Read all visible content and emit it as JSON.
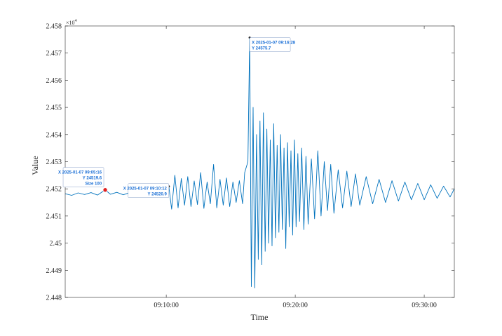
{
  "chart_data": {
    "type": "line",
    "title": "",
    "xlabel": "Time",
    "ylabel": "Value",
    "y_exponent_label": "×10",
    "y_exponent_power": "4",
    "ylim": [
      24480,
      24580
    ],
    "xlim": [
      "2025-01-07 09:02:10",
      "2025-01-07 09:32:20"
    ],
    "grid": false,
    "x_ticks": [
      {
        "t": "2025-01-07 09:10:00",
        "label": "09:10:00"
      },
      {
        "t": "2025-01-07 09:20:00",
        "label": "09:20:00"
      },
      {
        "t": "2025-01-07 09:30:00",
        "label": "09:30:00"
      }
    ],
    "y_ticks": [
      {
        "v": 24480,
        "label": "2.448"
      },
      {
        "v": 24490,
        "label": "2.449"
      },
      {
        "v": 24500,
        "label": "2.45"
      },
      {
        "v": 24510,
        "label": "2.451"
      },
      {
        "v": 24520,
        "label": "2.452"
      },
      {
        "v": 24530,
        "label": "2.453"
      },
      {
        "v": 24540,
        "label": "2.454"
      },
      {
        "v": 24550,
        "label": "2.455"
      },
      {
        "v": 24560,
        "label": "2.456"
      },
      {
        "v": 24570,
        "label": "2.457"
      },
      {
        "v": 24580,
        "label": "2.458"
      }
    ],
    "series": [
      {
        "color": "#0072BD",
        "points": [
          [
            "2025-01-07 09:02:10",
            24518.2
          ],
          [
            "2025-01-07 09:02:40",
            24517.6
          ],
          [
            "2025-01-07 09:03:10",
            24518.5
          ],
          [
            "2025-01-07 09:03:40",
            24517.9
          ],
          [
            "2025-01-07 09:04:10",
            24518.6
          ],
          [
            "2025-01-07 09:04:40",
            24517.7
          ],
          [
            "2025-01-07 09:05:16",
            24519.6
          ],
          [
            "2025-01-07 09:05:40",
            24518.0
          ],
          [
            "2025-01-07 09:06:10",
            24518.7
          ],
          [
            "2025-01-07 09:06:40",
            24517.8
          ],
          [
            "2025-01-07 09:07:10",
            24518.6
          ],
          [
            "2025-01-07 09:07:40",
            24518.0
          ],
          [
            "2025-01-07 09:08:10",
            24518.8
          ],
          [
            "2025-01-07 09:08:40",
            24517.6
          ],
          [
            "2025-01-07 09:09:10",
            24518.9
          ],
          [
            "2025-01-07 09:09:40",
            24518.1
          ],
          [
            "2025-01-07 09:10:12",
            24520.9
          ],
          [
            "2025-01-07 09:10:25",
            24512.5
          ],
          [
            "2025-01-07 09:10:40",
            24525.0
          ],
          [
            "2025-01-07 09:10:55",
            24513.0
          ],
          [
            "2025-01-07 09:11:10",
            24523.8
          ],
          [
            "2025-01-07 09:11:25",
            24514.0
          ],
          [
            "2025-01-07 09:11:40",
            24524.5
          ],
          [
            "2025-01-07 09:11:55",
            24513.5
          ],
          [
            "2025-01-07 09:12:10",
            24522.9
          ],
          [
            "2025-01-07 09:12:25",
            24514.2
          ],
          [
            "2025-01-07 09:12:40",
            24526.0
          ],
          [
            "2025-01-07 09:12:55",
            24512.8
          ],
          [
            "2025-01-07 09:13:10",
            24522.5
          ],
          [
            "2025-01-07 09:13:25",
            24514.5
          ],
          [
            "2025-01-07 09:13:40",
            24529.0
          ],
          [
            "2025-01-07 09:13:55",
            24513.0
          ],
          [
            "2025-01-07 09:14:10",
            24523.5
          ],
          [
            "2025-01-07 09:14:25",
            24514.0
          ],
          [
            "2025-01-07 09:14:40",
            24524.0
          ],
          [
            "2025-01-07 09:14:55",
            24513.5
          ],
          [
            "2025-01-07 09:15:10",
            24522.5
          ],
          [
            "2025-01-07 09:15:25",
            24515.0
          ],
          [
            "2025-01-07 09:15:40",
            24523.0
          ],
          [
            "2025-01-07 09:15:55",
            24514.5
          ],
          [
            "2025-01-07 09:16:05",
            24526.0
          ],
          [
            "2025-01-07 09:16:20",
            24530.0
          ],
          [
            "2025-01-07 09:16:28",
            24575.7
          ],
          [
            "2025-01-07 09:16:36",
            24484.0
          ],
          [
            "2025-01-07 09:16:44",
            24550.0
          ],
          [
            "2025-01-07 09:16:52",
            24483.5
          ],
          [
            "2025-01-07 09:17:00",
            24540.0
          ],
          [
            "2025-01-07 09:17:08",
            24494.0
          ],
          [
            "2025-01-07 09:17:16",
            24545.0
          ],
          [
            "2025-01-07 09:17:24",
            24492.0
          ],
          [
            "2025-01-07 09:17:32",
            24548.0
          ],
          [
            "2025-01-07 09:17:40",
            24497.0
          ],
          [
            "2025-01-07 09:17:48",
            24542.0
          ],
          [
            "2025-01-07 09:17:56",
            24500.0
          ],
          [
            "2025-01-07 09:18:04",
            24538.0
          ],
          [
            "2025-01-07 09:18:12",
            24499.0
          ],
          [
            "2025-01-07 09:18:20",
            24544.0
          ],
          [
            "2025-01-07 09:18:28",
            24502.0
          ],
          [
            "2025-01-07 09:18:36",
            24536.0
          ],
          [
            "2025-01-07 09:18:44",
            24504.0
          ],
          [
            "2025-01-07 09:18:52",
            24540.0
          ],
          [
            "2025-01-07 09:19:00",
            24505.0
          ],
          [
            "2025-01-07 09:19:08",
            24535.0
          ],
          [
            "2025-01-07 09:19:16",
            24498.0
          ],
          [
            "2025-01-07 09:19:24",
            24537.0
          ],
          [
            "2025-01-07 09:19:32",
            24506.0
          ],
          [
            "2025-01-07 09:19:40",
            24534.0
          ],
          [
            "2025-01-07 09:19:48",
            24503.0
          ],
          [
            "2025-01-07 09:19:56",
            24538.0
          ],
          [
            "2025-01-07 09:20:04",
            24506.0
          ],
          [
            "2025-01-07 09:20:12",
            24533.0
          ],
          [
            "2025-01-07 09:20:20",
            24508.0
          ],
          [
            "2025-01-07 09:20:30",
            24535.0
          ],
          [
            "2025-01-07 09:20:40",
            24505.0
          ],
          [
            "2025-01-07 09:20:50",
            24532.0
          ],
          [
            "2025-01-07 09:21:00",
            24507.0
          ],
          [
            "2025-01-07 09:21:15",
            24531.0
          ],
          [
            "2025-01-07 09:21:30",
            24509.0
          ],
          [
            "2025-01-07 09:21:45",
            24534.0
          ],
          [
            "2025-01-07 09:22:00",
            24510.0
          ],
          [
            "2025-01-07 09:22:15",
            24530.0
          ],
          [
            "2025-01-07 09:22:30",
            24512.0
          ],
          [
            "2025-01-07 09:22:45",
            24529.0
          ],
          [
            "2025-01-07 09:23:00",
            24511.0
          ],
          [
            "2025-01-07 09:23:20",
            24527.0
          ],
          [
            "2025-01-07 09:23:40",
            24513.0
          ],
          [
            "2025-01-07 09:24:00",
            24526.5
          ],
          [
            "2025-01-07 09:24:20",
            24513.5
          ],
          [
            "2025-01-07 09:24:40",
            24525.5
          ],
          [
            "2025-01-07 09:25:00",
            24514.0
          ],
          [
            "2025-01-07 09:25:30",
            24524.5
          ],
          [
            "2025-01-07 09:26:00",
            24514.5
          ],
          [
            "2025-01-07 09:26:30",
            24523.5
          ],
          [
            "2025-01-07 09:27:00",
            24515.0
          ],
          [
            "2025-01-07 09:27:30",
            24523.0
          ],
          [
            "2025-01-07 09:28:00",
            24515.5
          ],
          [
            "2025-01-07 09:28:30",
            24522.5
          ],
          [
            "2025-01-07 09:29:00",
            24516.0
          ],
          [
            "2025-01-07 09:29:30",
            24522.0
          ],
          [
            "2025-01-07 09:30:00",
            24516.0
          ],
          [
            "2025-01-07 09:30:30",
            24521.5
          ],
          [
            "2025-01-07 09:31:00",
            24516.5
          ],
          [
            "2025-01-07 09:31:30",
            24521.0
          ],
          [
            "2025-01-07 09:32:00",
            24517.0
          ],
          [
            "2025-01-07 09:32:20",
            24520.0
          ]
        ]
      }
    ],
    "datatips": [
      {
        "name": "datatip-1",
        "x": "2025-01-07 09:05:16",
        "y": 24519.6,
        "lines": [
          "X 2025-01-07 09:05:16",
          "Y 24519.6",
          "Size 100"
        ],
        "marker": "#e02020"
      },
      {
        "name": "datatip-2",
        "x": "2025-01-07 09:10:12",
        "y": 24520.9,
        "lines": [
          "X 2025-01-07 09:10:12",
          "Y 24520.9"
        ]
      },
      {
        "name": "datatip-3",
        "x": "2025-01-07 09:16:28",
        "y": 24575.7,
        "lines": [
          "X 2025-01-07 09:16:28",
          "Y 24575.7"
        ]
      }
    ]
  }
}
